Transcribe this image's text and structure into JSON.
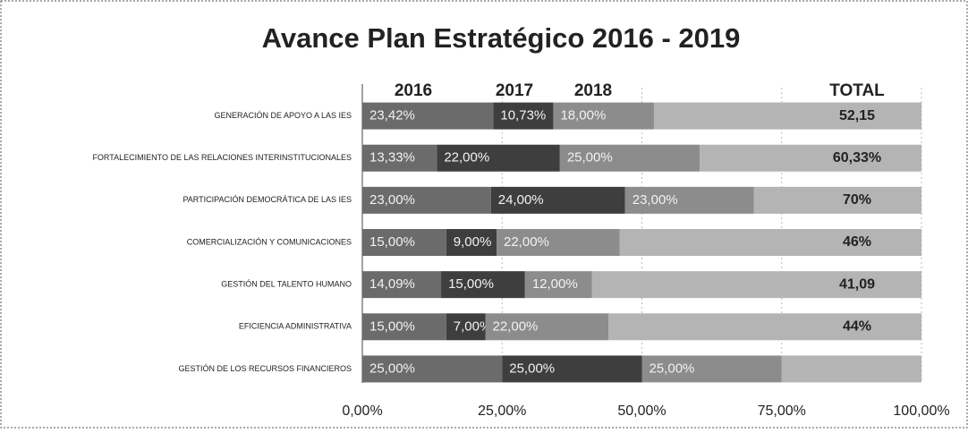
{
  "chart_data": {
    "type": "stacked_bar_horizontal",
    "title": "Avance Plan Estratégico 2016 - 2019",
    "categories": [
      "GENERACIÓN DE APOYO A LAS IES",
      "FORTALECIMIENTO DE LAS RELACIONES INTERINSTITUCIONALES",
      "PARTICIPACIÓN DEMOCRÁTICA DE LAS IES",
      "COMERCIALIZACIÓN Y COMUNICACIONES",
      "GESTIÓN DEL TALENTO HUMANO",
      "EFICIENCIA ADMINISTRATIVA",
      "GESTIÓN DE LOS RECURSOS FINANCIEROS"
    ],
    "series": [
      {
        "name": "2016",
        "color": "#6b6b6b",
        "values": [
          23.42,
          13.33,
          23,
          15,
          14.09,
          15,
          25
        ],
        "value_labels": [
          "23,42%",
          "13,33%",
          "23,00%",
          "15,00%",
          "14,09%",
          "15,00%",
          "25,00%"
        ]
      },
      {
        "name": "2017",
        "color": "#3e3e3e",
        "values": [
          10.73,
          22,
          24,
          9,
          15,
          7,
          25
        ],
        "value_labels": [
          "10,73%",
          "22,00%",
          "24,00%",
          "9,00%",
          "15,00%",
          "7,00%",
          "25,00%"
        ]
      },
      {
        "name": "2018",
        "color": "#8c8c8c",
        "values": [
          18,
          25,
          23,
          22,
          12,
          22,
          25
        ],
        "value_labels": [
          "18,00%",
          "25,00%",
          "23,00%",
          "22,00%",
          "12,00%",
          "22,00%",
          "25,00%"
        ]
      },
      {
        "name": "TOTAL",
        "color": "#b4b4b4",
        "values": [
          47.85,
          39.67,
          30,
          54,
          58.91,
          56,
          25
        ]
      }
    ],
    "totals": [
      52.15,
      60.33,
      70,
      46,
      41.09,
      44,
      null
    ],
    "total_labels": [
      "52,15",
      "60,33%",
      "70%",
      "46%",
      "41,09",
      "44%",
      null
    ],
    "xlim": [
      0,
      100
    ],
    "xticks": [
      {
        "value": 0,
        "label": "0,00%"
      },
      {
        "value": 25,
        "label": "25,00%"
      },
      {
        "value": 50,
        "label": "50,00%"
      },
      {
        "value": 75,
        "label": "75,00%"
      },
      {
        "value": 100,
        "label": "100,00%"
      }
    ],
    "grid": true
  }
}
